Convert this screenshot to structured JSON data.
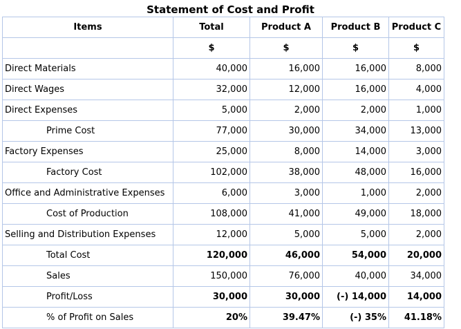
{
  "title": "Statement of Cost and Profit",
  "headers": [
    "Items",
    "Total",
    "Product A",
    "Product B",
    "Product C"
  ],
  "currency_row": [
    "",
    "$",
    "$",
    "$",
    "$"
  ],
  "rows": [
    {
      "label": "Direct Materials",
      "indent": false,
      "bold": false,
      "values": [
        "40,000",
        "16,000",
        "16,000",
        "8,000"
      ]
    },
    {
      "label": "Direct Wages",
      "indent": false,
      "bold": false,
      "values": [
        "32,000",
        "12,000",
        "16,000",
        "4,000"
      ]
    },
    {
      "label": "Direct Expenses",
      "indent": false,
      "bold": false,
      "values": [
        "5,000",
        "2,000",
        "2,000",
        "1,000"
      ]
    },
    {
      "label": "Prime Cost",
      "indent": true,
      "bold": false,
      "values": [
        "77,000",
        "30,000",
        "34,000",
        "13,000"
      ]
    },
    {
      "label": "Factory Expenses",
      "indent": false,
      "bold": false,
      "values": [
        "25,000",
        "8,000",
        "14,000",
        "3,000"
      ]
    },
    {
      "label": "Factory Cost",
      "indent": true,
      "bold": false,
      "values": [
        "102,000",
        "38,000",
        "48,000",
        "16,000"
      ]
    },
    {
      "label": "Office and Administrative Expenses",
      "indent": false,
      "bold": false,
      "values": [
        "6,000",
        "3,000",
        "1,000",
        "2,000"
      ]
    },
    {
      "label": "Cost of Production",
      "indent": true,
      "bold": false,
      "values": [
        "108,000",
        "41,000",
        "49,000",
        "18,000"
      ]
    },
    {
      "label": "Selling and Distribution Expenses",
      "indent": false,
      "bold": false,
      "values": [
        "12,000",
        "5,000",
        "5,000",
        "2,000"
      ]
    },
    {
      "label": "Total Cost",
      "indent": true,
      "bold": true,
      "values": [
        "120,000",
        "46,000",
        "54,000",
        "20,000"
      ]
    },
    {
      "label": "Sales",
      "indent": true,
      "bold": false,
      "values": [
        "150,000",
        "76,000",
        "40,000",
        "34,000"
      ]
    },
    {
      "label": "Profit/Loss",
      "indent": true,
      "bold": true,
      "values": [
        "30,000",
        "30,000",
        "(-) 14,000",
        "14,000"
      ]
    },
    {
      "label": "% of Profit on Sales",
      "indent": true,
      "bold": true,
      "values": [
        "20%",
        "39.47%",
        "(-) 35%",
        "41.18%"
      ]
    }
  ]
}
